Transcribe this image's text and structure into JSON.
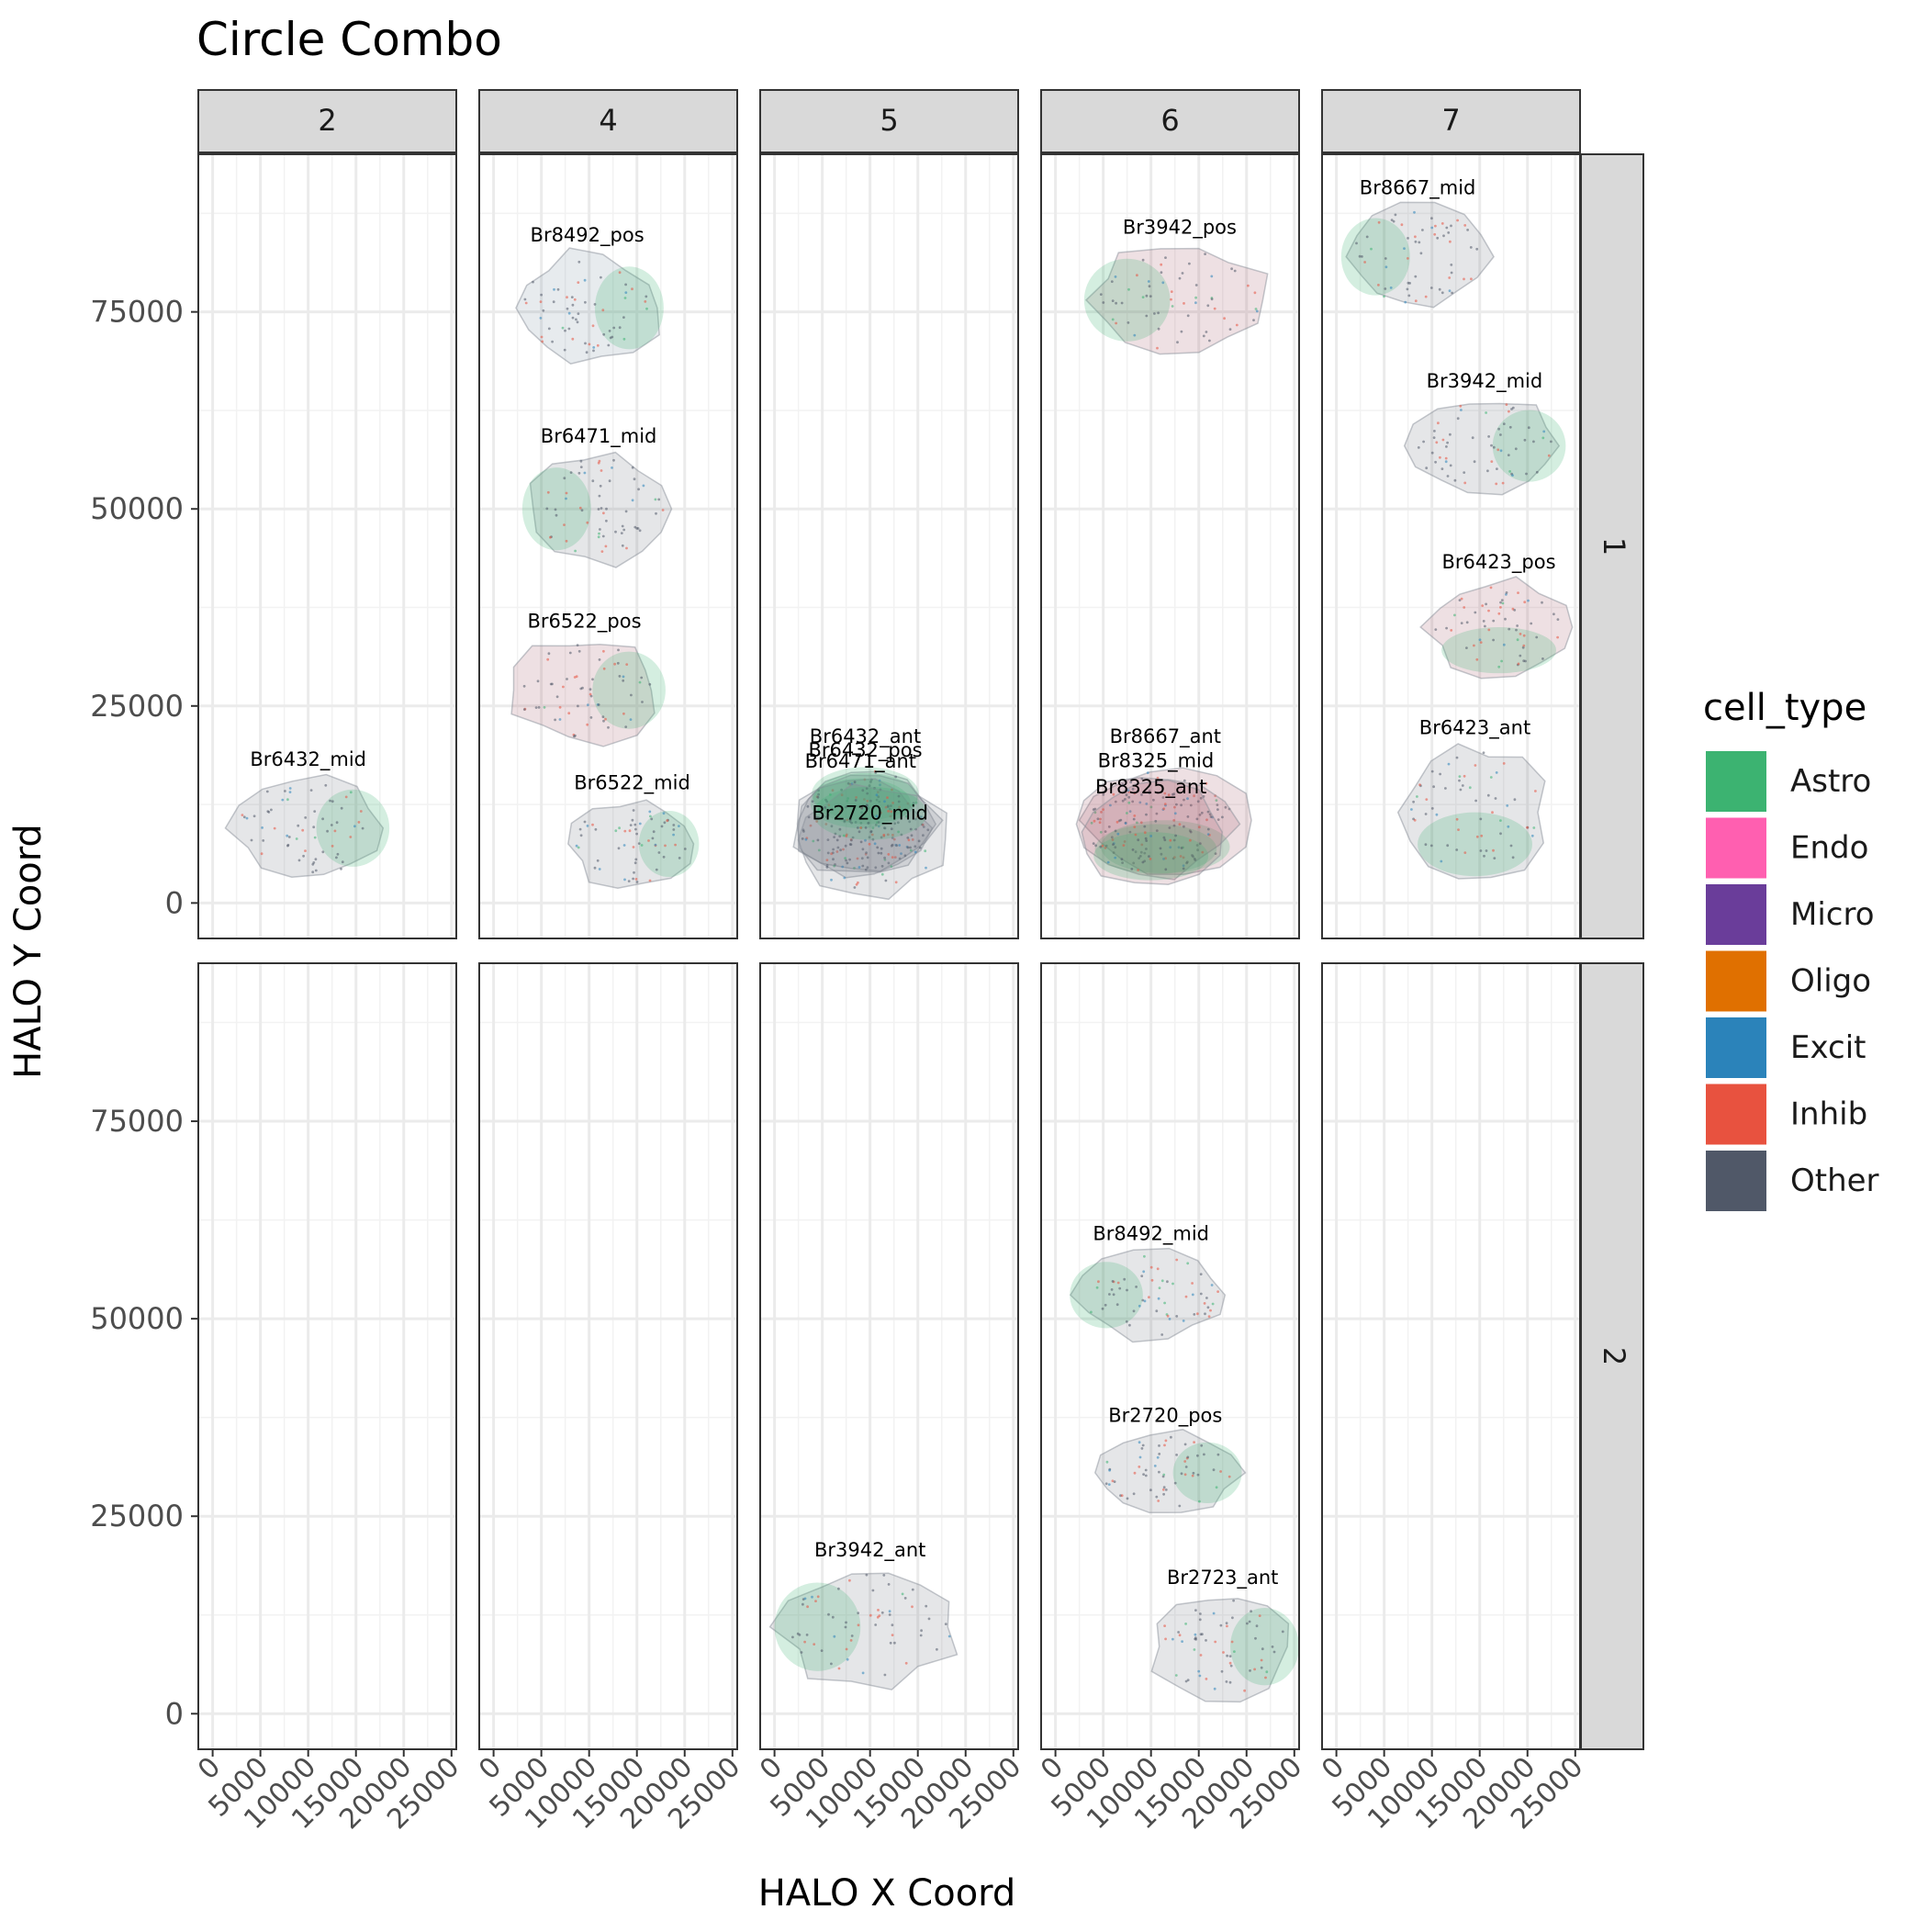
{
  "chart_data": {
    "type": "scatter",
    "title": "Circle Combo",
    "xlabel": "HALO X Coord",
    "ylabel": "HALO Y Coord",
    "xlim": [
      -1500,
      25500
    ],
    "ylim": [
      -4500,
      95000
    ],
    "x_ticks": [
      0,
      5000,
      10000,
      15000,
      20000,
      25000
    ],
    "y_ticks": [
      0,
      25000,
      50000,
      75000
    ],
    "column_facets": [
      "2",
      "4",
      "5",
      "6",
      "7"
    ],
    "row_facets": [
      "1",
      "2"
    ],
    "grid": true,
    "legend": {
      "title": "cell_type",
      "placement": "right",
      "items": [
        {
          "label": "Astro",
          "color": "#3cb371"
        },
        {
          "label": "Endo",
          "color": "#ff5fb0"
        },
        {
          "label": "Micro",
          "color": "#6a3d9a"
        },
        {
          "label": "Oligo",
          "color": "#e07000"
        },
        {
          "label": "Excit",
          "color": "#2b83ba"
        },
        {
          "label": "Inhib",
          "color": "#e8523f"
        },
        {
          "label": "Other",
          "color": "#505868"
        }
      ]
    },
    "samples": [
      {
        "label": "Br6432_mid",
        "col": "2",
        "row": "1",
        "cx": 10000,
        "cy": 9500,
        "rx": 8500,
        "ry": 7000,
        "dominant": "Other",
        "astro_side": "right"
      },
      {
        "label": "Br8492_pos",
        "col": "4",
        "row": "1",
        "cx": 9800,
        "cy": 75500,
        "rx": 8000,
        "ry": 7500,
        "dominant": "Excit",
        "astro_side": "right"
      },
      {
        "label": "Br6471_mid",
        "col": "4",
        "row": "1",
        "cx": 11000,
        "cy": 50000,
        "rx": 8000,
        "ry": 7500,
        "dominant": "Other",
        "astro_side": "left"
      },
      {
        "label": "Br6522_pos",
        "col": "4",
        "row": "1",
        "cx": 9500,
        "cy": 27000,
        "rx": 8500,
        "ry": 7000,
        "dominant": "Inhib",
        "astro_side": "right"
      },
      {
        "label": "Br6522_mid",
        "col": "4",
        "row": "1",
        "cx": 14500,
        "cy": 7500,
        "rx": 7000,
        "ry": 6000,
        "dominant": "Other",
        "astro_side": "right"
      },
      {
        "label": "Br6432_ant",
        "col": "5",
        "row": "1",
        "cx": 9500,
        "cy": 10500,
        "rx": 8000,
        "ry": 7500,
        "dominant": "Other",
        "astro_side": "top"
      },
      {
        "label": "Br6432_pos",
        "col": "5",
        "row": "1",
        "cx": 9500,
        "cy": 10000,
        "rx": 7800,
        "ry": 7200,
        "dominant": "Other",
        "astro_side": "top"
      },
      {
        "label": "Br6471_ant",
        "col": "5",
        "row": "1",
        "cx": 9000,
        "cy": 9500,
        "rx": 7500,
        "ry": 7000,
        "dominant": "Other",
        "astro_side": "top"
      },
      {
        "label": "Br2720_mid",
        "col": "5",
        "row": "1",
        "cx": 10000,
        "cy": 8000,
        "rx": 8500,
        "ry": 7500,
        "dominant": "Other",
        "astro_side": "top"
      },
      {
        "label": "Br3942_pos",
        "col": "6",
        "row": "1",
        "cx": 13000,
        "cy": 76500,
        "rx": 10000,
        "ry": 7500,
        "dominant": "Inhib",
        "astro_side": "left"
      },
      {
        "label": "Br8667_ant",
        "col": "6",
        "row": "1",
        "cx": 11500,
        "cy": 10500,
        "rx": 9000,
        "ry": 7500,
        "dominant": "Inhib",
        "astro_side": "bottom"
      },
      {
        "label": "Br8325_mid",
        "col": "6",
        "row": "1",
        "cx": 10500,
        "cy": 10000,
        "rx": 8500,
        "ry": 7000,
        "dominant": "Inhib",
        "astro_side": "bottom"
      },
      {
        "label": "Br8325_ant",
        "col": "6",
        "row": "1",
        "cx": 10000,
        "cy": 9000,
        "rx": 8000,
        "ry": 6800,
        "dominant": "Inhib",
        "astro_side": "bottom"
      },
      {
        "label": "Br8667_mid",
        "col": "7",
        "row": "1",
        "cx": 8500,
        "cy": 82000,
        "rx": 8000,
        "ry": 7000,
        "dominant": "Other",
        "astro_side": "left"
      },
      {
        "label": "Br3942_mid",
        "col": "7",
        "row": "1",
        "cx": 15500,
        "cy": 58000,
        "rx": 8500,
        "ry": 6500,
        "dominant": "Other",
        "astro_side": "right"
      },
      {
        "label": "Br6423_pos",
        "col": "7",
        "row": "1",
        "cx": 17000,
        "cy": 35000,
        "rx": 8000,
        "ry": 6500,
        "dominant": "Inhib",
        "astro_side": "bottom"
      },
      {
        "label": "Br6423_ant",
        "col": "7",
        "row": "1",
        "cx": 14500,
        "cy": 11500,
        "rx": 8000,
        "ry": 9000,
        "dominant": "Other",
        "astro_side": "bottom"
      },
      {
        "label": "Br8492_mid",
        "col": "6",
        "row": "2",
        "cx": 10000,
        "cy": 53000,
        "rx": 8500,
        "ry": 6000,
        "dominant": "Other",
        "astro_side": "left"
      },
      {
        "label": "Br2720_pos",
        "col": "6",
        "row": "2",
        "cx": 11500,
        "cy": 30500,
        "rx": 8000,
        "ry": 5500,
        "dominant": "Other",
        "astro_side": "right"
      },
      {
        "label": "Br3942_ant",
        "col": "5",
        "row": "2",
        "cx": 10000,
        "cy": 11000,
        "rx": 10000,
        "ry": 8000,
        "dominant": "Other",
        "astro_side": "left"
      },
      {
        "label": "Br2723_ant",
        "col": "6",
        "row": "2",
        "cx": 17500,
        "cy": 8500,
        "rx": 8000,
        "ry": 7000,
        "dominant": "Other",
        "astro_side": "right"
      }
    ]
  }
}
